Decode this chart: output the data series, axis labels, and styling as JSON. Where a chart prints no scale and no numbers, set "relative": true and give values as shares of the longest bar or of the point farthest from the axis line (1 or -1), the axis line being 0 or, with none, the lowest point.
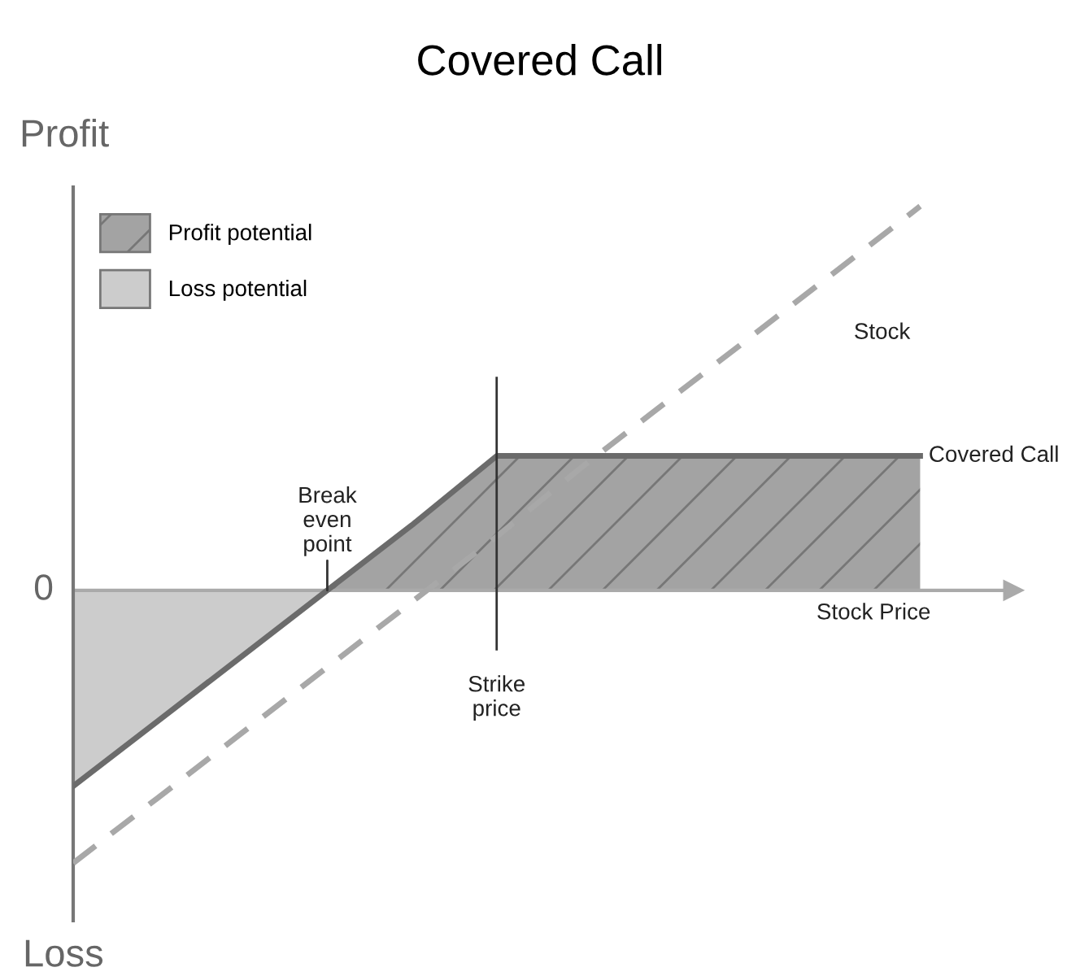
{
  "chart_data": {
    "type": "line",
    "title": "Covered Call",
    "xlabel": "Stock Price",
    "ylabel": "Profit",
    "relative": true,
    "categories": [
      null,
      null,
      null,
      null,
      null,
      null,
      null,
      null,
      null,
      null,
      null
    ],
    "series": [
      {
        "name": "Profit potential",
        "type": "area",
        "color": "#a3a3a3",
        "values": [
          null,
          null,
          null,
          0,
          0.17,
          0.35,
          0.35,
          0.35,
          0.35,
          0.35,
          0.35
        ]
      },
      {
        "name": "Loss potential",
        "type": "area",
        "color": "#cccccc",
        "values": [
          -0.51,
          -0.34,
          -0.17,
          0,
          null,
          null,
          null,
          null,
          null,
          null,
          null
        ]
      },
      {
        "name": "Stock",
        "line_style": "dashed",
        "color": "#a8a8a8",
        "values": [
          -0.71,
          -0.54,
          -0.37,
          -0.2,
          -0.03,
          0.14,
          0.32,
          0.49,
          0.66,
          0.83,
          1.0
        ]
      },
      {
        "name": "Covered Call",
        "line_style": "solid",
        "color": "#6b6b6b",
        "values": [
          -0.51,
          -0.34,
          -0.17,
          0,
          0.17,
          0.35,
          0.35,
          0.35,
          0.35,
          0.35,
          0.35
        ]
      }
    ],
    "annotations": [
      "Break\neven\npoint",
      "0",
      "Loss",
      "Strike\nprice"
    ],
    "legend": "top left",
    "tick_labels": false
  }
}
